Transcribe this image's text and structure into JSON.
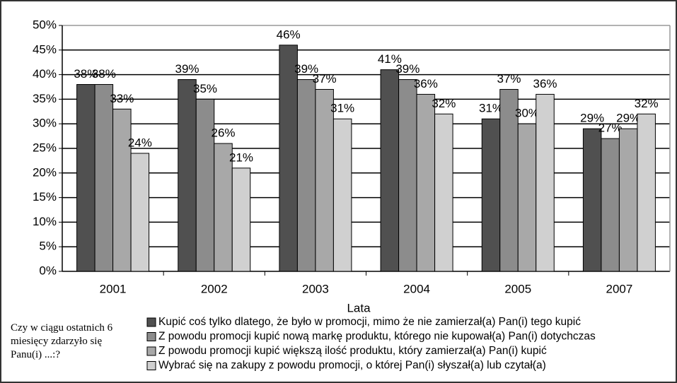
{
  "chart_data": {
    "type": "bar",
    "categories": [
      "2001",
      "2002",
      "2003",
      "2004",
      "2005",
      "2007"
    ],
    "x_label": "Lata",
    "legend_title": "Czy w ciągu ostatnich 6 miesięcy zdarzyło się Panu(i) ...:?",
    "series": [
      {
        "name": "Kupić coś tylko dlatego, że było w promocji, mimo że nie zamierzał(a) Pan(i) tego kupić",
        "color": "#505050",
        "values": [
          38,
          39,
          46,
          41,
          31,
          29
        ],
        "value_labels": [
          "38%",
          "39%",
          "46%",
          "41%",
          "31%",
          "29%"
        ]
      },
      {
        "name": "Z powodu promocji kupić nową markę produktu, którego nie kupował(a) Pan(i) dotychczas",
        "color": "#8c8c8c",
        "values": [
          38,
          35,
          39,
          39,
          37,
          27
        ],
        "value_labels": [
          "38%",
          "35%",
          "39%",
          "39%",
          "37%",
          "27%"
        ]
      },
      {
        "name": "Z powodu promocji kupić większą ilość produktu, który zamierzał(a) Pan(i) kupić",
        "color": "#a8a8a8",
        "values": [
          33,
          26,
          37,
          36,
          30,
          29
        ],
        "value_labels": [
          "33%",
          "26%",
          "37%",
          "36%",
          "30%",
          "29%"
        ]
      },
      {
        "name": "Wybrać się na zakupy z powodu promocji, o której Pan(i) słyszał(a) lub czytał(a)",
        "color": "#d0d0d0",
        "values": [
          24,
          21,
          31,
          32,
          36,
          32
        ],
        "value_labels": [
          "24%",
          "21%",
          "31%",
          "32%",
          "36%",
          "32%"
        ]
      }
    ],
    "ylim": [
      0,
      50
    ],
    "yticks": [
      {
        "value": 0,
        "label": "0%"
      },
      {
        "value": 5,
        "label": "5%"
      },
      {
        "value": 10,
        "label": "10%"
      },
      {
        "value": 15,
        "label": "15%"
      },
      {
        "value": 20,
        "label": "20%"
      },
      {
        "value": 25,
        "label": "25%"
      },
      {
        "value": 30,
        "label": "30%"
      },
      {
        "value": 35,
        "label": "35%"
      },
      {
        "value": 40,
        "label": "40%"
      },
      {
        "value": 45,
        "label": "45%"
      },
      {
        "value": 50,
        "label": "50%"
      }
    ],
    "grid": true
  }
}
